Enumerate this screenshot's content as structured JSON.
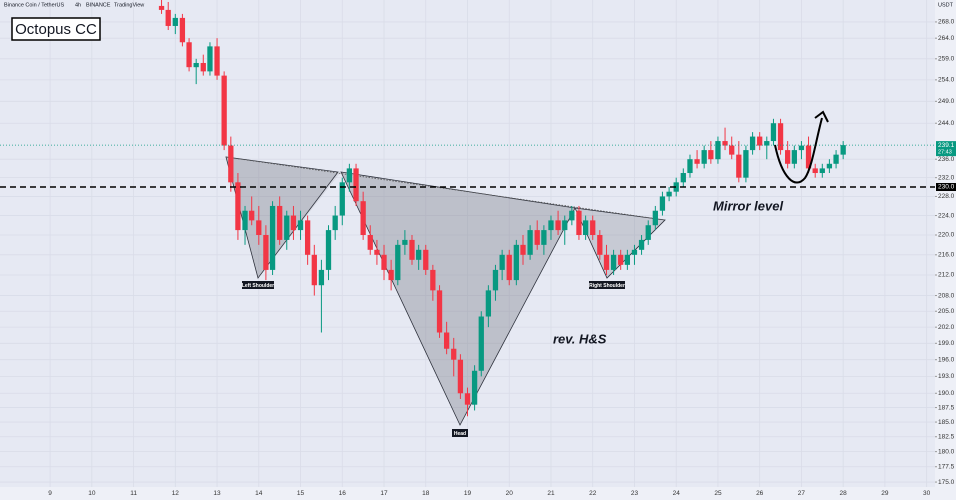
{
  "header": {
    "symbol": "Binance Coin / TetherUS",
    "interval": "4h",
    "exchange": "BINANCE",
    "source": "TradingView"
  },
  "chart_data": {
    "type": "candlestick",
    "title": "Octopus CC",
    "currency": "USDT",
    "log_scale": true,
    "grid": true,
    "up_color": "#089981",
    "down_color": "#f23645",
    "xlim": [
      7.8,
      30.2
    ],
    "xticks": [
      9,
      10,
      11,
      12,
      13,
      14,
      15,
      16,
      17,
      18,
      19,
      20,
      21,
      22,
      23,
      24,
      25,
      26,
      27,
      28,
      29,
      30
    ],
    "ylim": [
      174.2,
      273.5
    ],
    "yticks": [
      {
        "value": 268,
        "label": "268.0"
      },
      {
        "value": 264,
        "label": "264.0"
      },
      {
        "value": 259,
        "label": "259.0"
      },
      {
        "value": 254,
        "label": "254.0"
      },
      {
        "value": 249,
        "label": "249.0"
      },
      {
        "value": 244,
        "label": "244.0"
      },
      {
        "value": 236,
        "label": "236.0"
      },
      {
        "value": 232,
        "label": "232.0"
      },
      {
        "value": 228,
        "label": "228.0"
      },
      {
        "value": 224,
        "label": "224.0"
      },
      {
        "value": 220,
        "label": "220.0"
      },
      {
        "value": 216,
        "label": "216.0"
      },
      {
        "value": 212,
        "label": "212.0"
      },
      {
        "value": 208,
        "label": "208.0"
      },
      {
        "value": 205,
        "label": "205.0"
      },
      {
        "value": 202,
        "label": "202.0"
      },
      {
        "value": 199,
        "label": "199.0"
      },
      {
        "value": 196,
        "label": "196.0"
      },
      {
        "value": 193,
        "label": "193.0"
      },
      {
        "value": 190,
        "label": "190.0"
      },
      {
        "value": 187.5,
        "label": "187.5"
      },
      {
        "value": 185,
        "label": "185.0"
      },
      {
        "value": 182.5,
        "label": "182.5"
      },
      {
        "value": 180,
        "label": "180.0"
      },
      {
        "value": 177.5,
        "label": "177.5"
      },
      {
        "value": 175,
        "label": "175.0"
      }
    ],
    "x": [
      11.67,
      11.83,
      12,
      12.17,
      12.33,
      12.5,
      12.67,
      12.83,
      13,
      13.17,
      13.33,
      13.5,
      13.67,
      13.83,
      14,
      14.17,
      14.33,
      14.5,
      14.67,
      14.83,
      15,
      15.17,
      15.33,
      15.5,
      15.67,
      15.83,
      16,
      16.17,
      16.33,
      16.5,
      16.67,
      16.83,
      17,
      17.17,
      17.33,
      17.5,
      17.67,
      17.83,
      18,
      18.17,
      18.33,
      18.5,
      18.67,
      18.83,
      19,
      19.17,
      19.33,
      19.5,
      19.67,
      19.83,
      20,
      20.17,
      20.33,
      20.5,
      20.67,
      20.83,
      21,
      21.17,
      21.33,
      21.5,
      21.67,
      21.83,
      22,
      22.17,
      22.33,
      22.5,
      22.67,
      22.83,
      23,
      23.17,
      23.33,
      23.5,
      23.67,
      23.83,
      24,
      24.17,
      24.33,
      24.5,
      24.67,
      24.83,
      25,
      25.17,
      25.33,
      25.5,
      25.67,
      25.83,
      26,
      26.17,
      26.33,
      26.5,
      26.67,
      26.83,
      27,
      27.17,
      27.33,
      27.5,
      27.67,
      27.83,
      28
    ],
    "open": [
      272,
      271,
      267,
      269,
      263,
      257,
      258,
      256,
      262,
      255,
      239,
      231,
      221,
      225,
      223,
      220,
      213,
      226,
      219,
      224,
      221,
      223,
      216,
      210,
      213,
      221,
      224,
      231,
      234,
      227,
      220,
      217,
      216,
      213,
      211,
      218,
      219,
      215,
      217,
      213,
      209,
      201,
      198,
      196,
      190,
      188,
      194,
      204,
      209,
      213,
      216,
      211,
      218,
      216,
      221,
      218,
      221,
      223,
      221,
      223,
      225,
      220,
      223,
      220,
      216,
      213,
      216,
      214,
      216,
      217,
      219,
      222,
      225,
      228,
      229,
      231,
      233,
      236,
      235,
      238,
      236,
      240,
      239,
      237,
      232,
      238,
      241,
      239,
      240,
      244,
      238,
      235,
      238,
      239,
      234,
      233,
      234,
      235,
      237
    ],
    "high": [
      274,
      273,
      270,
      270,
      264,
      259,
      260,
      263,
      264,
      256,
      241,
      233,
      226,
      228,
      226,
      222,
      227,
      228,
      225,
      226,
      225,
      224,
      218,
      215,
      222,
      226,
      232,
      235,
      235,
      229,
      222,
      219,
      218,
      215,
      219,
      221,
      220,
      218,
      218,
      214,
      210,
      203,
      200,
      197,
      191,
      195,
      205,
      210,
      214,
      217,
      217,
      219,
      220,
      222,
      223,
      222,
      224,
      225,
      224,
      226,
      226,
      224,
      224,
      221,
      218,
      217,
      217,
      217,
      218,
      220,
      223,
      226,
      229,
      230,
      232,
      234,
      237,
      238,
      239,
      240,
      241,
      243,
      241,
      240,
      239,
      242,
      242,
      241,
      245,
      245,
      240,
      239,
      240,
      241,
      235,
      235,
      236,
      238,
      240
    ],
    "low": [
      270,
      266,
      265,
      262,
      256,
      253,
      255,
      255,
      254,
      238,
      229,
      219,
      218,
      222,
      218,
      211,
      212,
      218,
      217,
      219,
      219,
      214,
      208,
      201,
      211,
      219,
      222,
      229,
      226,
      219,
      216,
      214,
      211,
      209,
      210,
      216,
      214,
      213,
      212,
      207,
      200,
      197,
      193,
      189,
      186,
      187,
      193,
      202,
      207,
      211,
      210,
      210,
      214,
      215,
      217,
      216,
      219,
      220,
      218,
      222,
      219,
      219,
      219,
      215,
      212,
      212,
      213,
      213,
      214,
      216,
      218,
      221,
      224,
      227,
      228,
      230,
      232,
      234,
      234,
      235,
      235,
      238,
      236,
      231,
      231,
      237,
      238,
      236,
      239,
      237,
      234,
      234,
      236,
      233,
      232,
      232,
      233,
      234,
      236
    ],
    "close": [
      271,
      267,
      269,
      263,
      257,
      258,
      256,
      262,
      255,
      239,
      231,
      221,
      225,
      223,
      220,
      213,
      226,
      219,
      224,
      221,
      223,
      216,
      210,
      213,
      221,
      224,
      231,
      234,
      227,
      220,
      217,
      216,
      213,
      211,
      218,
      219,
      215,
      217,
      213,
      209,
      201,
      198,
      196,
      190,
      188,
      194,
      204,
      209,
      213,
      216,
      211,
      218,
      216,
      221,
      218,
      221,
      223,
      221,
      223,
      225,
      220,
      223,
      220,
      216,
      213,
      216,
      214,
      216,
      217,
      219,
      222,
      225,
      228,
      229,
      231,
      233,
      236,
      235,
      238,
      236,
      240,
      239,
      237,
      232,
      238,
      241,
      239,
      240,
      244,
      238,
      235,
      238,
      239,
      234,
      233,
      234,
      235,
      237,
      239.1
    ],
    "last_price": {
      "value": 239.1,
      "label": "239.1"
    },
    "countdown": "27:43",
    "mirror_level": {
      "value": 230,
      "label": "230.0"
    },
    "annotations": {
      "left_shoulder": "Left Shoulder",
      "head": "Head",
      "right_shoulder": "Right Shoulder",
      "pattern": "rev. H&S",
      "mirror": "Mirror level"
    }
  }
}
